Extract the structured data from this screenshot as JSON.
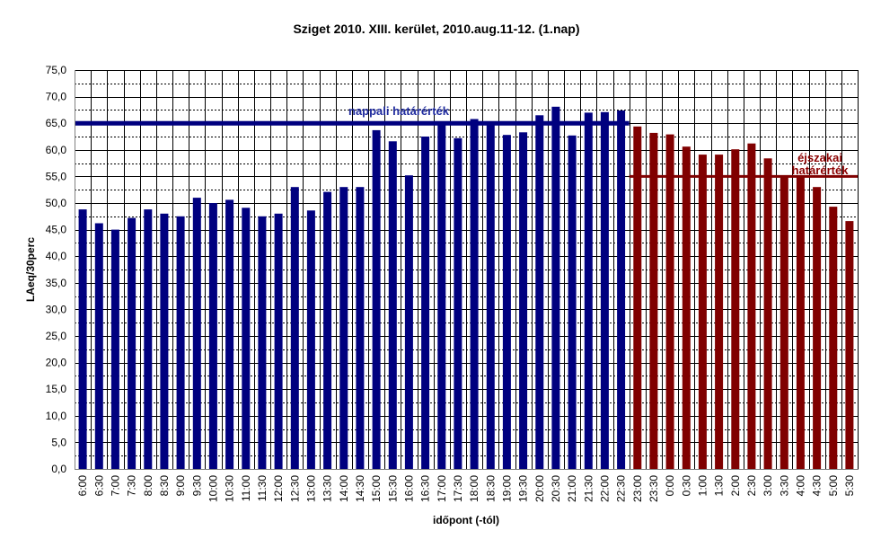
{
  "chart_data": {
    "type": "bar",
    "title": "Sziget 2010.  XIII. kerület, 2010.aug.11-12. (1.nap)",
    "xlabel": "időpont (-tól)",
    "ylabel": "LAeq/30perc",
    "ylim": [
      0,
      75
    ],
    "yticks": [
      "0,0",
      "5,0",
      "10,0",
      "15,0",
      "20,0",
      "25,0",
      "30,0",
      "35,0",
      "40,0",
      "45,0",
      "50,0",
      "55,0",
      "60,0",
      "65,0",
      "70,0",
      "75,0"
    ],
    "categories": [
      "6:00",
      "6:30",
      "7:00",
      "7:30",
      "8:00",
      "8:30",
      "9:00",
      "9:30",
      "10:00",
      "10:30",
      "11:00",
      "11:30",
      "12:00",
      "12:30",
      "13:00",
      "13:30",
      "14:00",
      "14:30",
      "15:00",
      "15:30",
      "16:00",
      "16:30",
      "17:00",
      "17:30",
      "18:00",
      "18:30",
      "19:00",
      "19:30",
      "20:00",
      "20:30",
      "21:00",
      "21:30",
      "22:00",
      "22:30",
      "23:00",
      "23:30",
      "0:00",
      "0:30",
      "1:00",
      "1:30",
      "2:00",
      "2:30",
      "3:00",
      "3:30",
      "4:00",
      "4:30",
      "5:00",
      "5:30"
    ],
    "series": [
      {
        "values": [
          48.8,
          46.2,
          45.0,
          47.2,
          48.8,
          48.0,
          47.5,
          51.0,
          50.0,
          50.6,
          49.1,
          47.5,
          48.0,
          53.0,
          48.6,
          52.1,
          53.0,
          53.0,
          63.7,
          61.6,
          55.2,
          62.5,
          65.0,
          62.2,
          65.8,
          64.8,
          62.8,
          63.3,
          66.5,
          68.1,
          62.7,
          67.0,
          67.1,
          67.4,
          64.4,
          63.2,
          62.9,
          60.6,
          59.1,
          59.1,
          60.1,
          61.2,
          58.4,
          55.2,
          55.0,
          53.0,
          49.3,
          46.6
        ],
        "colors_by_category": [
          "#00007f",
          "#00007f",
          "#00007f",
          "#00007f",
          "#00007f",
          "#00007f",
          "#00007f",
          "#00007f",
          "#00007f",
          "#00007f",
          "#00007f",
          "#00007f",
          "#00007f",
          "#00007f",
          "#00007f",
          "#00007f",
          "#00007f",
          "#00007f",
          "#00007f",
          "#00007f",
          "#00007f",
          "#00007f",
          "#00007f",
          "#00007f",
          "#00007f",
          "#00007f",
          "#00007f",
          "#00007f",
          "#00007f",
          "#00007f",
          "#00007f",
          "#00007f",
          "#00007f",
          "#00007f",
          "#800000",
          "#800000",
          "#800000",
          "#800000",
          "#800000",
          "#800000",
          "#800000",
          "#800000",
          "#800000",
          "#800000",
          "#800000",
          "#800000",
          "#800000",
          "#800000"
        ]
      }
    ],
    "reference_lines": [
      {
        "label": "nappali határérték",
        "value": 65.0,
        "from": "6:00",
        "to": "22:30",
        "color": "#00007f"
      },
      {
        "label_lines": [
          "éjszakai",
          "határérték"
        ],
        "value": 55.0,
        "from": "23:00",
        "to": "5:30",
        "color": "#800000"
      }
    ],
    "grid": true,
    "colors": {
      "day": "#00007f",
      "night": "#800000",
      "day_text": "#1f2b9e",
      "night_text": "#8b0000"
    }
  }
}
